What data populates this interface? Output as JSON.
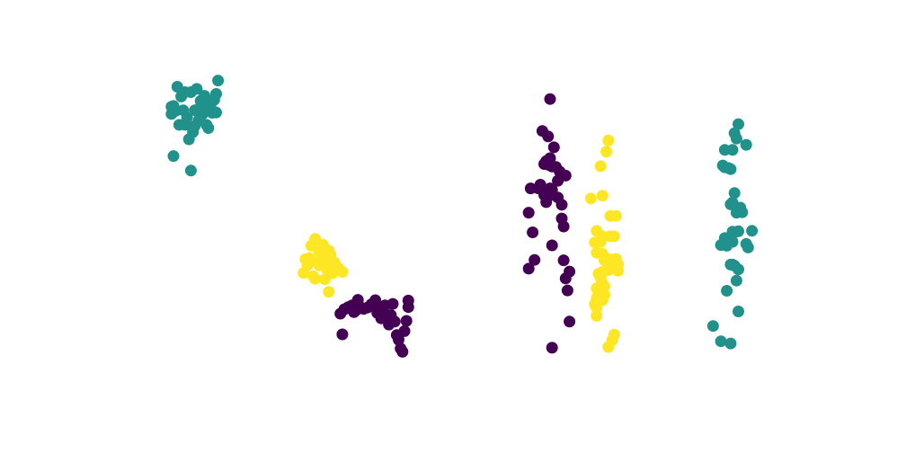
{
  "chart_data": {
    "type": "scatter",
    "title": "",
    "xlabel": "",
    "ylabel": "",
    "axes_visible": false,
    "grid": false,
    "legend": "none",
    "xlim": [
      -0.25,
      3.25
    ],
    "ylim": [
      0,
      1
    ],
    "colors": {
      "c0": "#440154",
      "c1": "#21918c",
      "c2": "#fde725"
    },
    "series": [
      {
        "color_key": "c1",
        "points": [
          [
            0.15,
            0.87
          ],
          [
            0.18,
            0.879
          ],
          [
            0.2,
            0.846
          ],
          [
            0.17,
            0.82
          ],
          [
            0.13,
            0.8
          ],
          [
            0.22,
            0.86
          ],
          [
            0.24,
            0.843
          ],
          [
            0.25,
            0.83
          ],
          [
            0.21,
            0.81
          ],
          [
            0.19,
            0.792
          ],
          [
            0.23,
            0.78
          ],
          [
            0.16,
            0.76
          ],
          [
            0.14,
            0.74
          ],
          [
            0.11,
            0.82
          ],
          [
            0.09,
            0.78
          ],
          [
            0.07,
            0.818
          ],
          [
            0.06,
            0.832
          ],
          [
            0.05,
            0.83
          ],
          [
            0.08,
            0.885
          ],
          [
            0.1,
            0.858
          ],
          [
            0.12,
            0.87
          ],
          [
            0.26,
            0.813
          ],
          [
            0.27,
            0.849
          ],
          [
            0.28,
            0.865
          ],
          [
            0.29,
            0.902
          ],
          [
            0.26,
            0.845
          ],
          [
            0.23,
            0.842
          ],
          [
            0.2,
            0.829
          ],
          [
            0.05,
            0.81
          ],
          [
            0.12,
            0.78
          ],
          [
            0.17,
            0.777
          ],
          [
            0.06,
            0.694
          ],
          [
            0.15,
            0.654
          ],
          [
            0.24,
            0.771
          ],
          [
            0.28,
            0.814
          ]
        ]
      },
      {
        "color_key": "c2",
        "points": [
          [
            0.77,
            0.447
          ],
          [
            0.79,
            0.466
          ],
          [
            0.81,
            0.431
          ],
          [
            0.83,
            0.413
          ],
          [
            0.85,
            0.386
          ],
          [
            0.87,
            0.422
          ],
          [
            0.82,
            0.398
          ],
          [
            0.8,
            0.402
          ],
          [
            0.84,
            0.355
          ],
          [
            0.86,
            0.434
          ],
          [
            0.88,
            0.371
          ],
          [
            0.76,
            0.413
          ],
          [
            0.78,
            0.363
          ],
          [
            0.83,
            0.45
          ],
          [
            0.85,
            0.383
          ],
          [
            0.74,
            0.41
          ],
          [
            0.73,
            0.372
          ],
          [
            0.89,
            0.401
          ],
          [
            0.91,
            0.385
          ],
          [
            0.93,
            0.375
          ],
          [
            0.81,
            0.393
          ],
          [
            0.79,
            0.356
          ],
          [
            0.87,
            0.394
          ],
          [
            0.75,
            0.393
          ],
          [
            0.86,
            0.32
          ]
        ]
      },
      {
        "color_key": "c0",
        "points": [
          [
            1.1,
            0.297
          ],
          [
            1.12,
            0.279
          ],
          [
            1.14,
            0.256
          ],
          [
            1.16,
            0.249
          ],
          [
            1.18,
            0.256
          ],
          [
            1.2,
            0.238
          ],
          [
            1.21,
            0.201
          ],
          [
            1.22,
            0.188
          ],
          [
            1.23,
            0.164
          ],
          [
            1.24,
            0.155
          ],
          [
            1.08,
            0.286
          ],
          [
            1.06,
            0.277
          ],
          [
            1.04,
            0.273
          ],
          [
            1.02,
            0.279
          ],
          [
            1.0,
            0.269
          ],
          [
            0.98,
            0.283
          ],
          [
            0.96,
            0.278
          ],
          [
            0.94,
            0.272
          ],
          [
            0.92,
            0.26
          ],
          [
            1.15,
            0.283
          ],
          [
            1.19,
            0.287
          ],
          [
            1.25,
            0.212
          ],
          [
            1.26,
            0.24
          ],
          [
            1.27,
            0.278
          ],
          [
            1.27,
            0.296
          ],
          [
            1.01,
            0.298
          ],
          [
            1.13,
            0.247
          ],
          [
            1.11,
            0.262
          ],
          [
            1.17,
            0.23
          ],
          [
            0.99,
            0.264
          ],
          [
            0.93,
            0.203
          ]
        ]
      },
      {
        "color_key": "c0",
        "points": [
          [
            2.0,
            0.851
          ],
          [
            1.96,
            0.763
          ],
          [
            1.99,
            0.748
          ],
          [
            2.02,
            0.718
          ],
          [
            2.0,
            0.688
          ],
          [
            1.98,
            0.68
          ],
          [
            1.97,
            0.672
          ],
          [
            1.99,
            0.67
          ],
          [
            2.01,
            0.665
          ],
          [
            2.03,
            0.664
          ],
          [
            2.05,
            0.651
          ],
          [
            2.08,
            0.64
          ],
          [
            2.04,
            0.626
          ],
          [
            2.01,
            0.601
          ],
          [
            1.95,
            0.615
          ],
          [
            1.94,
            0.605
          ],
          [
            1.97,
            0.587
          ],
          [
            2.0,
            0.586
          ],
          [
            2.04,
            0.58
          ],
          [
            2.06,
            0.56
          ],
          [
            1.9,
            0.605
          ],
          [
            1.89,
            0.538
          ],
          [
            2.06,
            0.522
          ],
          [
            2.07,
            0.5
          ],
          [
            1.91,
            0.484
          ],
          [
            2.01,
            0.448
          ],
          [
            1.92,
            0.408
          ],
          [
            2.07,
            0.407
          ],
          [
            1.89,
            0.384
          ],
          [
            2.1,
            0.376
          ],
          [
            2.08,
            0.357
          ],
          [
            2.09,
            0.324
          ],
          [
            2.1,
            0.238
          ],
          [
            2.01,
            0.166
          ],
          [
            2.0,
            0.605
          ],
          [
            1.98,
            0.567
          ]
        ]
      },
      {
        "color_key": "c2",
        "points": [
          [
            2.3,
            0.737
          ],
          [
            2.29,
            0.706
          ],
          [
            2.26,
            0.666
          ],
          [
            2.21,
            0.577
          ],
          [
            2.27,
            0.585
          ],
          [
            2.31,
            0.529
          ],
          [
            2.34,
            0.529
          ],
          [
            2.24,
            0.488
          ],
          [
            2.27,
            0.473
          ],
          [
            2.31,
            0.473
          ],
          [
            2.33,
            0.473
          ],
          [
            2.26,
            0.458
          ],
          [
            2.23,
            0.456
          ],
          [
            2.24,
            0.428
          ],
          [
            2.27,
            0.425
          ],
          [
            2.28,
            0.407
          ],
          [
            2.29,
            0.412
          ],
          [
            2.31,
            0.409
          ],
          [
            2.34,
            0.411
          ],
          [
            2.35,
            0.396
          ],
          [
            2.33,
            0.384
          ],
          [
            2.3,
            0.38
          ],
          [
            2.27,
            0.375
          ],
          [
            2.25,
            0.37
          ],
          [
            2.26,
            0.358
          ],
          [
            2.28,
            0.336
          ],
          [
            2.27,
            0.327
          ],
          [
            2.25,
            0.33
          ],
          [
            2.24,
            0.33
          ],
          [
            2.24,
            0.304
          ],
          [
            2.27,
            0.297
          ],
          [
            2.28,
            0.312
          ],
          [
            2.24,
            0.276
          ],
          [
            2.23,
            0.286
          ],
          [
            2.24,
            0.254
          ],
          [
            2.33,
            0.202
          ],
          [
            2.3,
            0.168
          ],
          [
            2.32,
            0.187
          ],
          [
            2.27,
            0.343
          ],
          [
            2.35,
            0.378
          ]
        ]
      },
      {
        "color_key": "c1",
        "points": [
          [
            2.97,
            0.782
          ],
          [
            2.95,
            0.757
          ],
          [
            2.96,
            0.742
          ],
          [
            3.01,
            0.725
          ],
          [
            2.9,
            0.711
          ],
          [
            2.94,
            0.711
          ],
          [
            2.89,
            0.668
          ],
          [
            2.9,
            0.663
          ],
          [
            2.92,
            0.661
          ],
          [
            2.93,
            0.658
          ],
          [
            2.95,
            0.592
          ],
          [
            2.94,
            0.566
          ],
          [
            2.99,
            0.539
          ],
          [
            2.96,
            0.538
          ],
          [
            2.97,
            0.546
          ],
          [
            2.93,
            0.561
          ],
          [
            2.98,
            0.552
          ],
          [
            2.94,
            0.486
          ],
          [
            2.95,
            0.484
          ],
          [
            2.9,
            0.468
          ],
          [
            2.92,
            0.465
          ],
          [
            2.94,
            0.458
          ],
          [
            2.91,
            0.447
          ],
          [
            2.88,
            0.449
          ],
          [
            2.97,
            0.487
          ],
          [
            3.04,
            0.488
          ],
          [
            3.01,
            0.452
          ],
          [
            3.02,
            0.442
          ],
          [
            2.94,
            0.395
          ],
          [
            2.93,
            0.395
          ],
          [
            2.95,
            0.392
          ],
          [
            2.96,
            0.351
          ],
          [
            2.97,
            0.382
          ],
          [
            2.91,
            0.323
          ],
          [
            2.84,
            0.226
          ],
          [
            2.97,
            0.266
          ],
          [
            2.88,
            0.184
          ],
          [
            2.93,
            0.178
          ]
        ]
      }
    ]
  }
}
